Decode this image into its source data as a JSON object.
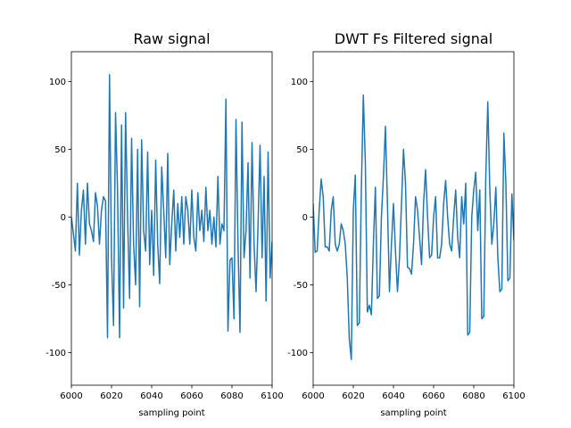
{
  "chart_data": [
    {
      "type": "line",
      "title": "Raw signal",
      "x_label": "sampling point",
      "x": [
        6000,
        6001,
        6002,
        6003,
        6004,
        6005,
        6006,
        6007,
        6008,
        6009,
        6010,
        6011,
        6012,
        6013,
        6014,
        6015,
        6016,
        6017,
        6018,
        6019,
        6020,
        6021,
        6022,
        6023,
        6024,
        6025,
        6026,
        6027,
        6028,
        6029,
        6030,
        6031,
        6032,
        6033,
        6034,
        6035,
        6036,
        6037,
        6038,
        6039,
        6040,
        6041,
        6042,
        6043,
        6044,
        6045,
        6046,
        6047,
        6048,
        6049,
        6050,
        6051,
        6052,
        6053,
        6054,
        6055,
        6056,
        6057,
        6058,
        6059,
        6060,
        6061,
        6062,
        6063,
        6064,
        6065,
        6066,
        6067,
        6068,
        6069,
        6070,
        6071,
        6072,
        6073,
        6074,
        6075,
        6076,
        6077,
        6078,
        6079,
        6080,
        6081,
        6082,
        6083,
        6084,
        6085,
        6086,
        6087,
        6088,
        6089,
        6090,
        6091,
        6092,
        6093,
        6094,
        6095,
        6096,
        6097,
        6098,
        6099,
        6100
      ],
      "series": [
        {
          "name": "Raw signal",
          "color": "#1f77b4",
          "values": [
            0,
            -12,
            -25,
            25,
            -28,
            5,
            20,
            -20,
            25,
            -5,
            -10,
            -18,
            18,
            8,
            -20,
            5,
            15,
            12,
            -89,
            105,
            -30,
            -80,
            77,
            20,
            -89,
            68,
            -67,
            77,
            0,
            -60,
            58,
            -20,
            -50,
            50,
            -66,
            57,
            -10,
            -25,
            48,
            -35,
            5,
            -43,
            42,
            -20,
            -49,
            37,
            5,
            -30,
            47,
            -35,
            -5,
            20,
            -25,
            10,
            -15,
            15,
            -20,
            15,
            5,
            -20,
            20,
            -15,
            -25,
            18,
            -10,
            5,
            -18,
            22,
            -10,
            5,
            -20,
            0,
            -22,
            30,
            -20,
            -5,
            -10,
            87,
            -84,
            -32,
            -30,
            -75,
            72,
            -20,
            -85,
            70,
            -30,
            -10,
            40,
            -45,
            55,
            -20,
            -55,
            -5,
            53,
            -30,
            30,
            -62,
            48,
            -45,
            -18
          ]
        }
      ],
      "xlim": [
        6000,
        6100
      ],
      "xticks": [
        6000,
        6020,
        6040,
        6060,
        6080,
        6100
      ],
      "ylim": [
        -124,
        122
      ],
      "yticks": [
        -100,
        -50,
        0,
        50,
        100
      ]
    },
    {
      "type": "line",
      "title": "DWT Fs Filtered signal",
      "x_label": "sampling point",
      "x": [
        6000,
        6001,
        6002,
        6003,
        6004,
        6005,
        6006,
        6007,
        6008,
        6009,
        6010,
        6011,
        6012,
        6013,
        6014,
        6015,
        6016,
        6017,
        6018,
        6019,
        6020,
        6021,
        6022,
        6023,
        6024,
        6025,
        6026,
        6027,
        6028,
        6029,
        6030,
        6031,
        6032,
        6033,
        6034,
        6035,
        6036,
        6037,
        6038,
        6039,
        6040,
        6041,
        6042,
        6043,
        6044,
        6045,
        6046,
        6047,
        6048,
        6049,
        6050,
        6051,
        6052,
        6053,
        6054,
        6055,
        6056,
        6057,
        6058,
        6059,
        6060,
        6061,
        6062,
        6063,
        6064,
        6065,
        6066,
        6067,
        6068,
        6069,
        6070,
        6071,
        6072,
        6073,
        6074,
        6075,
        6076,
        6077,
        6078,
        6079,
        6080,
        6081,
        6082,
        6083,
        6084,
        6085,
        6086,
        6087,
        6088,
        6089,
        6090,
        6091,
        6092,
        6093,
        6094,
        6095,
        6096,
        6097,
        6098,
        6099,
        6100
      ],
      "series": [
        {
          "name": "DWT Fs Filtered signal",
          "color": "#1f77b4",
          "values": [
            10,
            -26,
            -25,
            5,
            28,
            15,
            -22,
            -22,
            -25,
            5,
            15,
            -20,
            -25,
            -20,
            -5,
            -10,
            -20,
            -45,
            -90,
            -105,
            5,
            31,
            -80,
            -78,
            20,
            90,
            40,
            -70,
            -65,
            -72,
            -20,
            22,
            -60,
            -58,
            0,
            30,
            67,
            10,
            -55,
            -20,
            10,
            -25,
            -55,
            -30,
            10,
            50,
            25,
            -37,
            -38,
            -42,
            -20,
            15,
            5,
            -15,
            -35,
            10,
            35,
            0,
            -30,
            -28,
            0,
            15,
            -30,
            -30,
            -20,
            10,
            27,
            0,
            -20,
            -25,
            0,
            20,
            -15,
            -30,
            15,
            -5,
            25,
            -87,
            -85,
            0,
            20,
            33,
            -10,
            20,
            -75,
            -73,
            30,
            85,
            20,
            -20,
            -5,
            22,
            -30,
            -55,
            -53,
            62,
            25,
            -47,
            -45,
            17,
            -17
          ]
        }
      ],
      "xlim": [
        6000,
        6100
      ],
      "xticks": [
        6000,
        6020,
        6040,
        6060,
        6080,
        6100
      ],
      "ylim": [
        -124,
        122
      ],
      "yticks": [
        -100,
        -50,
        0,
        50,
        100
      ]
    }
  ]
}
